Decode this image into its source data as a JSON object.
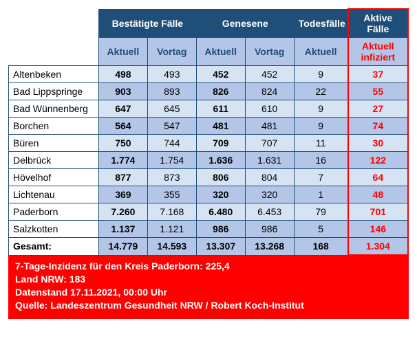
{
  "table": {
    "group_headers": [
      "Bestätigte Fälle",
      "Genesene",
      "Todesfälle",
      "Aktive Fälle"
    ],
    "sub_headers": [
      "Aktuell",
      "Vortag",
      "Aktuell",
      "Vortag",
      "Aktuell",
      "Aktuell infiziert"
    ],
    "columns_meta": {
      "bold_cols": [
        0,
        2,
        5
      ],
      "red_col_index": 5
    },
    "rows": [
      {
        "label": "Altenbeken",
        "cells": [
          "498",
          "493",
          "452",
          "452",
          "9",
          "37"
        ]
      },
      {
        "label": "Bad Lippspringe",
        "cells": [
          "903",
          "893",
          "826",
          "824",
          "22",
          "55"
        ]
      },
      {
        "label": "Bad Wünnenberg",
        "cells": [
          "647",
          "645",
          "611",
          "610",
          "9",
          "27"
        ]
      },
      {
        "label": "Borchen",
        "cells": [
          "564",
          "547",
          "481",
          "481",
          "9",
          "74"
        ]
      },
      {
        "label": "Büren",
        "cells": [
          "750",
          "744",
          "709",
          "707",
          "11",
          "30"
        ]
      },
      {
        "label": "Delbrück",
        "cells": [
          "1.774",
          "1.754",
          "1.636",
          "1.631",
          "16",
          "122"
        ]
      },
      {
        "label": "Hövelhof",
        "cells": [
          "877",
          "873",
          "806",
          "804",
          "7",
          "64"
        ]
      },
      {
        "label": "Lichtenau",
        "cells": [
          "369",
          "355",
          "320",
          "320",
          "1",
          "48"
        ]
      },
      {
        "label": "Paderborn",
        "cells": [
          "7.260",
          "7.168",
          "6.480",
          "6.453",
          "79",
          "701"
        ]
      },
      {
        "label": "Salzkotten",
        "cells": [
          "1.137",
          "1.121",
          "986",
          "986",
          "5",
          "146"
        ]
      }
    ],
    "total": {
      "label": "Gesamt:",
      "cells": [
        "14.779",
        "14.593",
        "13.307",
        "13.268",
        "168",
        "1.304"
      ]
    }
  },
  "footer": {
    "line1": "7-Tage-Inzidenz für den Kreis Paderborn: 225,4",
    "line2": "Land NRW: 183",
    "line3": "Datenstand 17.11.2021, 00:00 Uhr",
    "line4": "Quelle: Landeszentrum Gesundheit NRW / Robert Koch-Institut"
  },
  "style": {
    "border_color": "#1f4e79",
    "header_dark_bg": "#1f4e79",
    "header_blue_bg": "#b4c6e7",
    "row_light_bg": "#d5e3f3",
    "row_dark_bg": "#b4c6e7",
    "red": "#ff0000",
    "white": "#ffffff",
    "font_size_cell": 14,
    "font_size_footer": 14
  }
}
